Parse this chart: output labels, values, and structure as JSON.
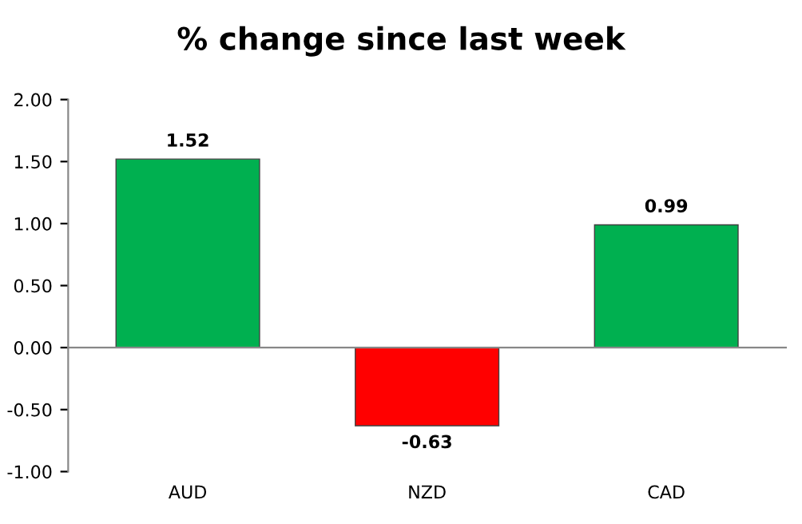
{
  "chart_data": {
    "type": "bar",
    "title": "% change since last week",
    "categories": [
      "AUD",
      "NZD",
      "CAD"
    ],
    "values": [
      1.52,
      -0.63,
      0.99
    ],
    "colors": [
      "#00b050",
      "#ff0000",
      "#00b050"
    ],
    "ylim": [
      -1.0,
      2.0
    ],
    "yticks": [
      {
        "value": -1.0,
        "label": "-1.00"
      },
      {
        "value": -0.5,
        "label": "-0.50"
      },
      {
        "value": 0.0,
        "label": "0.00"
      },
      {
        "value": 0.5,
        "label": "0.50"
      },
      {
        "value": 1.0,
        "label": "1.00"
      },
      {
        "value": 1.5,
        "label": "1.50"
      },
      {
        "value": 2.0,
        "label": "2.00"
      }
    ],
    "data_labels": true,
    "legend": false
  }
}
